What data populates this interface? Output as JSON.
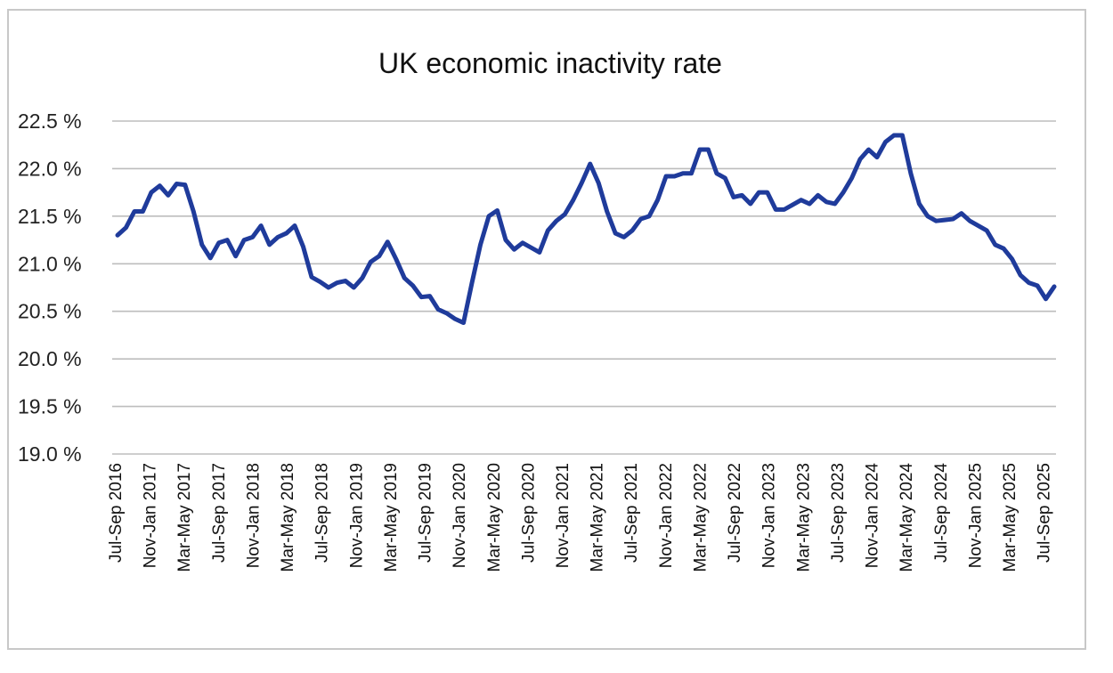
{
  "chart_data": {
    "type": "line",
    "title": "UK economic inactivity rate",
    "xlabel": "",
    "ylabel": "",
    "ylim": [
      19.0,
      22.5
    ],
    "y_ticks": [
      {
        "value": 22.5,
        "label": "22.5 %"
      },
      {
        "value": 22.0,
        "label": "22.0 %"
      },
      {
        "value": 21.5,
        "label": "21.5 %"
      },
      {
        "value": 21.0,
        "label": "21.0 %"
      },
      {
        "value": 20.5,
        "label": "20.5 %"
      },
      {
        "value": 20.0,
        "label": "20.0 %"
      },
      {
        "value": 19.5,
        "label": "19.5 %"
      },
      {
        "value": 19.0,
        "label": "19.0 %"
      }
    ],
    "x_tick_labels": [
      "Jul-Sep 2016",
      "Nov-Jan 2017",
      "Mar-May 2017",
      "Jul-Sep 2017",
      "Nov-Jan 2018",
      "Mar-May 2018",
      "Jul-Sep 2018",
      "Nov-Jan 2019",
      "Mar-May 2019",
      "Jul-Sep 2019",
      "Nov-Jan 2020",
      "Mar-May 2020",
      "Jul-Sep 2020",
      "Nov-Jan 2021",
      "Mar-May 2021",
      "Jul-Sep 2021",
      "Nov-Jan 2022",
      "Mar-May 2022",
      "Jul-Sep 2022",
      "Nov-Jan 2023",
      "Mar-May 2023",
      "Jul-Sep 2023",
      "Nov-Jan 2024",
      "Mar-May 2024",
      "Jul-Sep 2024",
      "Nov-Jan 2025",
      "Mar-May 2025",
      "Jul-Sep 2025"
    ],
    "grid": true,
    "series": [
      {
        "name": "UK economic inactivity rate",
        "color": "#1f3b9b",
        "values": [
          21.3,
          21.38,
          21.55,
          21.55,
          21.75,
          21.82,
          21.72,
          21.84,
          21.83,
          21.55,
          21.2,
          21.06,
          21.22,
          21.25,
          21.08,
          21.25,
          21.28,
          21.4,
          21.2,
          21.28,
          21.32,
          21.4,
          21.18,
          20.86,
          20.81,
          20.75,
          20.8,
          20.82,
          20.75,
          20.85,
          21.02,
          21.08,
          21.23,
          21.05,
          20.85,
          20.77,
          20.65,
          20.66,
          20.52,
          20.48,
          20.42,
          20.38,
          20.8,
          21.2,
          21.5,
          21.56,
          21.25,
          21.15,
          21.22,
          21.17,
          21.12,
          21.35,
          21.45,
          21.52,
          21.67,
          21.85,
          22.05,
          21.85,
          21.55,
          21.32,
          21.28,
          21.35,
          21.47,
          21.5,
          21.67,
          21.92,
          21.92,
          21.95,
          21.95,
          22.2,
          22.2,
          21.95,
          21.9,
          21.7,
          21.72,
          21.63,
          21.75,
          21.75,
          21.57,
          21.57,
          21.62,
          21.67,
          21.63,
          21.72,
          21.65,
          21.63,
          21.75,
          21.9,
          22.1,
          22.2,
          22.12,
          22.28,
          22.35,
          22.35,
          21.95,
          21.63,
          21.5,
          21.45,
          21.46,
          21.47,
          21.53,
          21.45,
          21.4,
          21.35,
          21.2,
          21.16,
          21.05,
          20.88,
          20.8,
          20.77,
          20.63,
          20.76
        ]
      }
    ]
  }
}
